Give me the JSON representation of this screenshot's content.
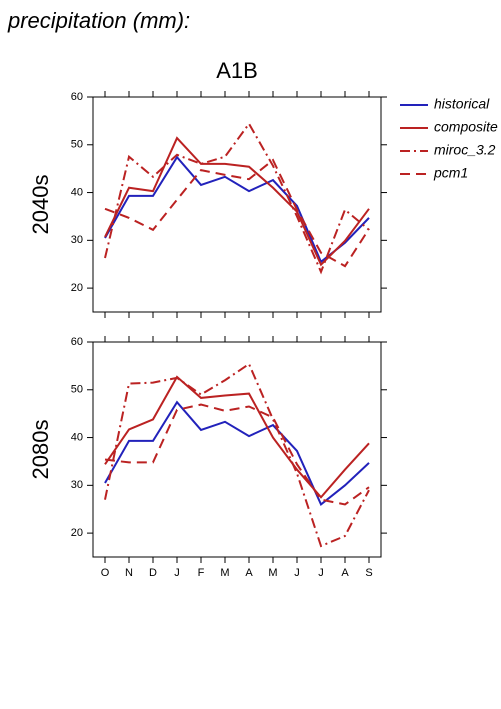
{
  "page": {
    "title": "precipitation (mm):",
    "subtitle": "A1B"
  },
  "chart_data": [
    {
      "type": "line",
      "ylabel": "2040s",
      "ylim": [
        15,
        60
      ],
      "yticks": [
        20,
        30,
        40,
        50,
        60
      ],
      "legend": "right",
      "series": [
        {
          "name": "historical",
          "color": "#2222bb",
          "linestyle": "solid",
          "values": [
            30.5,
            39.3,
            39.3,
            47.4,
            41.6,
            43.3,
            40.3,
            42.6,
            37.2,
            25.5,
            29.5,
            34.7
          ]
        },
        {
          "name": "composite",
          "color": "#bb2222",
          "linestyle": "solid",
          "values": [
            30.7,
            41,
            40.3,
            51.4,
            46,
            46,
            45.4,
            41,
            36,
            24.9,
            29.9,
            36.6
          ]
        },
        {
          "name": "miroc_3.2",
          "color": "#bb2222",
          "linestyle": "dashdot",
          "values": [
            26.3,
            47.5,
            43.3,
            47.9,
            46,
            47.5,
            54.4,
            45.6,
            35,
            23.4,
            36.4,
            32.2
          ]
        },
        {
          "name": "pcm1",
          "color": "#bb2222",
          "linestyle": "dashed",
          "values": [
            36.6,
            34.7,
            32.2,
            38.5,
            44.7,
            43.7,
            42.8,
            46.8,
            36.4,
            27.4,
            24.6,
            32.4
          ]
        }
      ]
    },
    {
      "type": "line",
      "ylabel": "2080s",
      "ylim": [
        15,
        60
      ],
      "yticks": [
        20,
        30,
        40,
        50,
        60
      ],
      "categories": [
        "O",
        "N",
        "D",
        "J",
        "F",
        "M",
        "A",
        "M",
        "J",
        "J",
        "A",
        "S"
      ],
      "series": [
        {
          "color": "#2222bb",
          "linestyle": "solid",
          "values": [
            30.5,
            39.3,
            39.3,
            47.4,
            41.6,
            43.3,
            40.3,
            42.6,
            37.2,
            26,
            30,
            34.7
          ]
        },
        {
          "color": "#bb2222",
          "linestyle": "solid",
          "values": [
            34.4,
            41.7,
            43.8,
            52.7,
            48.3,
            48.8,
            49.2,
            40,
            33.3,
            27.5,
            33.3,
            38.8
          ]
        },
        {
          "color": "#bb2222",
          "linestyle": "dashdot",
          "values": [
            27,
            51.3,
            51.5,
            52.5,
            49,
            52,
            55.4,
            43.8,
            32.5,
            17.3,
            19.4,
            29
          ]
        },
        {
          "color": "#bb2222",
          "linestyle": "dashed",
          "values": [
            35.4,
            34.8,
            34.8,
            45.8,
            46.9,
            45.6,
            46.5,
            44.2,
            34.4,
            27,
            26,
            29.6
          ]
        }
      ]
    }
  ]
}
